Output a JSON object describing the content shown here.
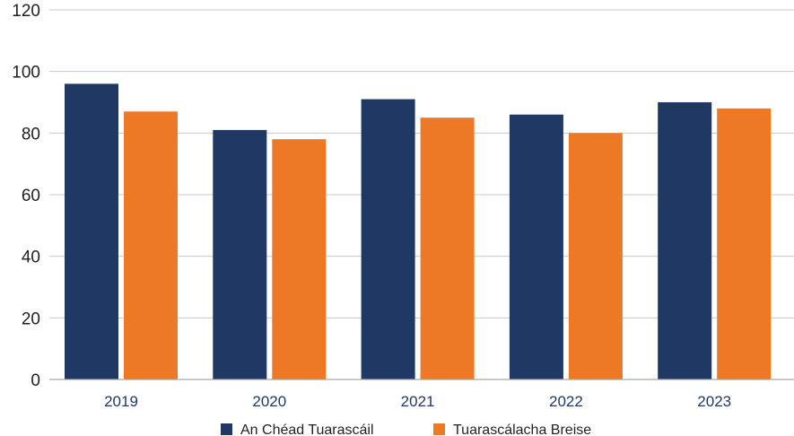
{
  "chart_data": {
    "type": "bar",
    "categories": [
      "2019",
      "2020",
      "2021",
      "2022",
      "2023"
    ],
    "series": [
      {
        "name": "An Chéad Tuarascáil",
        "values": [
          96,
          81,
          91,
          86,
          90
        ],
        "color": "#1f3864"
      },
      {
        "name": "Tuarascálacha Breise",
        "values": [
          87,
          78,
          85,
          80,
          88
        ],
        "color": "#ed7826"
      }
    ],
    "ylim": [
      0,
      120
    ],
    "yticks": [
      "0",
      "20",
      "40",
      "60",
      "80",
      "100",
      "120"
    ],
    "grid": true,
    "legend_position": "bottom"
  }
}
